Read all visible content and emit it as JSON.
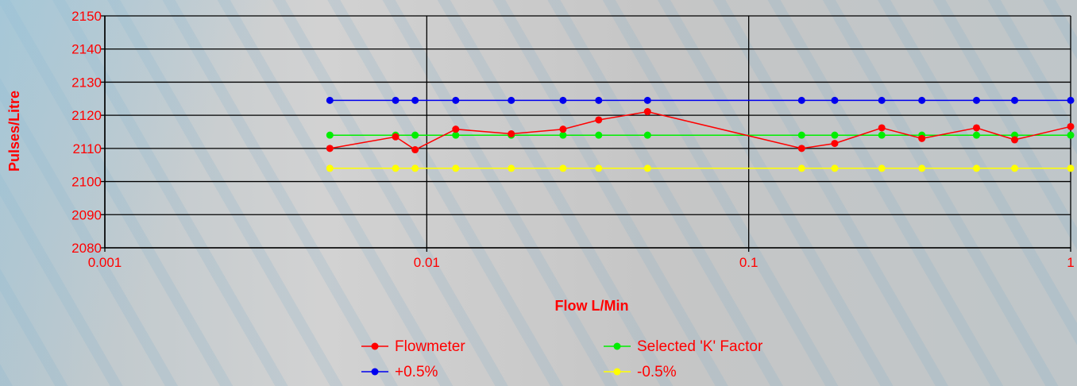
{
  "chart_data": {
    "type": "line",
    "xlabel": "Flow L/Min",
    "ylabel": "Pulses/Litre",
    "xscale": "log",
    "xlim": [
      0.001,
      1
    ],
    "ylim": [
      2080,
      2150
    ],
    "x_ticks": [
      "0.001",
      "0.01",
      "0.1",
      "1"
    ],
    "y_ticks": [
      "2080",
      "2090",
      "2100",
      "2110",
      "2120",
      "2130",
      "2140",
      "2150"
    ],
    "grid": true,
    "legend_position": "bottom",
    "series": [
      {
        "name": "Flowmeter",
        "color": "#ff0000",
        "x": [
          0.005,
          0.008,
          0.0092,
          0.0123,
          0.0183,
          0.0265,
          0.0342,
          0.0485,
          0.146,
          0.185,
          0.259,
          0.345,
          0.51,
          0.67,
          1.0
        ],
        "y": [
          2110,
          2113.5,
          2109.6,
          2115.8,
          2114.4,
          2115.8,
          2118.6,
          2121.1,
          2110,
          2111.5,
          2116.2,
          2113,
          2116.2,
          2112.6,
          2116.6
        ]
      },
      {
        "name": "Selected 'K' Factor",
        "color": "#00ee00",
        "x": [
          0.005,
          0.008,
          0.0092,
          0.0123,
          0.0183,
          0.0265,
          0.0342,
          0.0485,
          0.146,
          0.185,
          0.259,
          0.345,
          0.51,
          0.67,
          1.0
        ],
        "y": [
          2114,
          2114,
          2114,
          2114,
          2114,
          2114,
          2114,
          2114,
          2114,
          2114,
          2114,
          2114,
          2114,
          2114,
          2114
        ]
      },
      {
        "name": "+0.5%",
        "color": "#0000ee",
        "x": [
          0.005,
          0.008,
          0.0092,
          0.0123,
          0.0183,
          0.0265,
          0.0342,
          0.0485,
          0.146,
          0.185,
          0.259,
          0.345,
          0.51,
          0.67,
          1.0
        ],
        "y": [
          2124.5,
          2124.5,
          2124.5,
          2124.5,
          2124.5,
          2124.5,
          2124.5,
          2124.5,
          2124.5,
          2124.5,
          2124.5,
          2124.5,
          2124.5,
          2124.5,
          2124.5
        ]
      },
      {
        "name": "-0.5%",
        "color": "#ffff00",
        "x": [
          0.005,
          0.008,
          0.0092,
          0.0123,
          0.0183,
          0.0265,
          0.0342,
          0.0485,
          0.146,
          0.185,
          0.259,
          0.345,
          0.51,
          0.67,
          1.0
        ],
        "y": [
          2104,
          2104,
          2104,
          2104,
          2104,
          2104,
          2104,
          2104,
          2104,
          2104,
          2104,
          2104,
          2104,
          2104,
          2104
        ]
      }
    ]
  }
}
